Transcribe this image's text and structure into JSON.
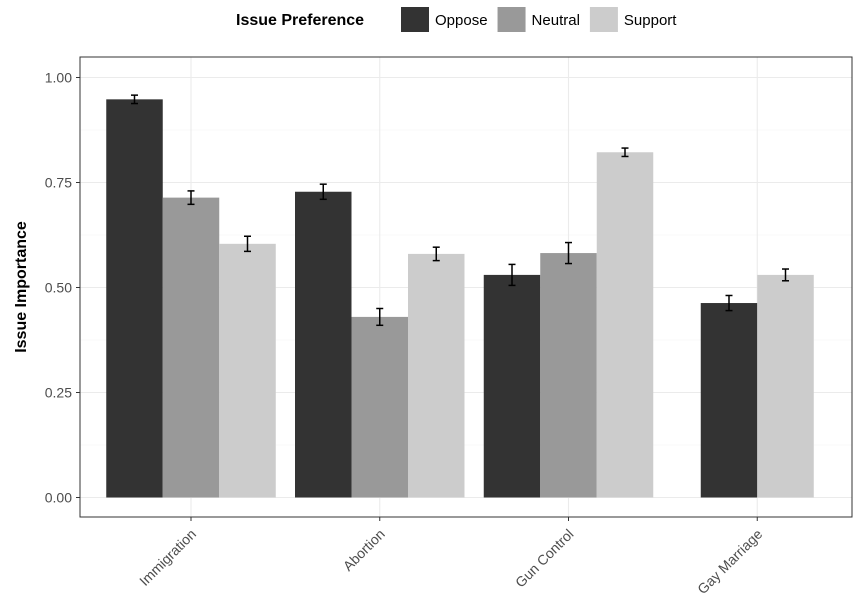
{
  "chart_data": {
    "type": "bar",
    "categories": [
      "Immigration",
      "Abortion",
      "Gun Control",
      "Gay Marriage"
    ],
    "series": [
      {
        "name": "Oppose",
        "color": "#333333",
        "values": [
          0.948,
          0.728,
          0.53,
          0.463
        ],
        "error_low": [
          0.938,
          0.71,
          0.505,
          0.445
        ],
        "error_high": [
          0.958,
          0.746,
          0.555,
          0.481
        ]
      },
      {
        "name": "Neutral",
        "color": "#999999",
        "values": [
          0.714,
          0.43,
          0.582,
          null
        ],
        "error_low": [
          0.698,
          0.41,
          0.557,
          null
        ],
        "error_high": [
          0.73,
          0.45,
          0.607,
          null
        ]
      },
      {
        "name": "Support",
        "color": "#cccccc",
        "values": [
          0.604,
          0.58,
          0.822,
          0.53
        ],
        "error_low": [
          0.586,
          0.564,
          0.812,
          0.516
        ],
        "error_high": [
          0.622,
          0.596,
          0.832,
          0.544
        ]
      }
    ],
    "title": "",
    "xlabel": "",
    "ylabel": "Issue Importance",
    "ylim": [
      0,
      1.0
    ],
    "yticks": [
      "0.00",
      "0.25",
      "0.50",
      "0.75",
      "1.00"
    ],
    "ytick_values": [
      0,
      0.25,
      0.5,
      0.75,
      1.0
    ],
    "grid": true,
    "legend": {
      "title": "Issue Preference",
      "position": "top"
    }
  }
}
